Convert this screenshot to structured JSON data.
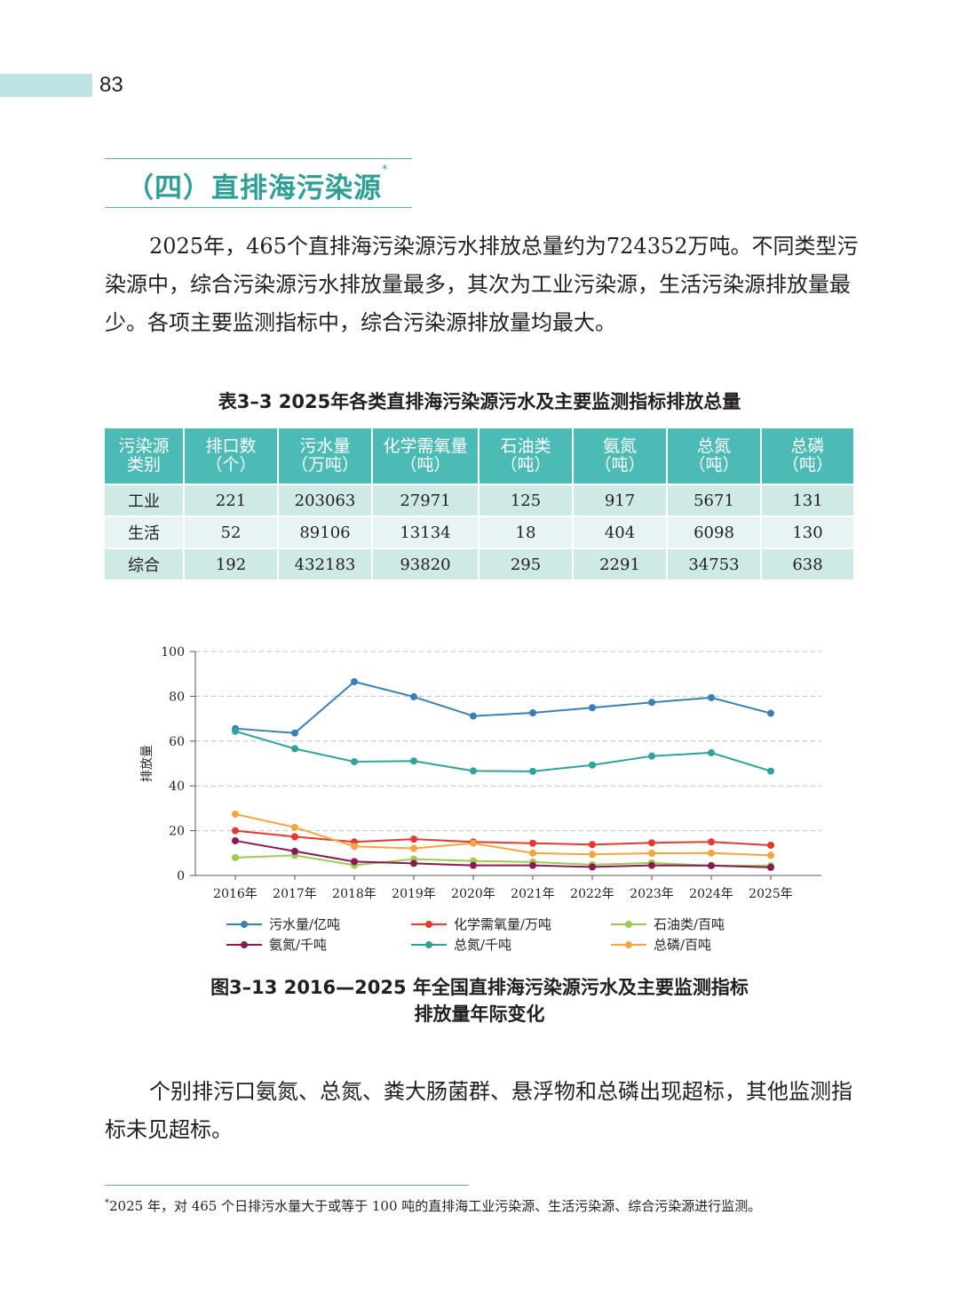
{
  "page_number": "83",
  "section": {
    "title": "（四）直排海污染源",
    "title_mark": "*"
  },
  "paragraph_1": "2025年，465个直排海污染源污水排放总量约为724352万吨。不同类型污染源中，综合污染源污水排放量最多，其次为工业污染源，生活污染源排放量最少。各项主要监测指标中，综合污染源排放量均最大。",
  "table": {
    "caption": "表3–3  2025年各类直排海污染源污水及主要监测指标排放总量",
    "headers": [
      {
        "line1": "污染源",
        "line2": "类别"
      },
      {
        "line1": "排口数",
        "line2": "（个）"
      },
      {
        "line1": "污水量",
        "line2": "（万吨）"
      },
      {
        "line1": "化学需氧量",
        "line2": "（吨）"
      },
      {
        "line1": "石油类",
        "line2": "（吨）"
      },
      {
        "line1": "氨氮",
        "line2": "（吨）"
      },
      {
        "line1": "总氮",
        "line2": "（吨）"
      },
      {
        "line1": "总磷",
        "line2": "（吨）"
      }
    ],
    "rows": [
      [
        "工业",
        "221",
        "203063",
        "27971",
        "125",
        "917",
        "5671",
        "131"
      ],
      [
        "生活",
        "52",
        "89106",
        "13134",
        "18",
        "404",
        "6098",
        "130"
      ],
      [
        "综合",
        "192",
        "432183",
        "93820",
        "295",
        "2291",
        "34753",
        "638"
      ]
    ]
  },
  "chart_data": {
    "type": "line",
    "ylabel": "排放量",
    "xlabel": "",
    "ylim": [
      0,
      100
    ],
    "yticks": [
      0,
      20,
      40,
      60,
      80,
      100
    ],
    "grid": "horizontal dashed",
    "legend_position": "bottom",
    "categories": [
      "2016年",
      "2017年",
      "2018年",
      "2019年",
      "2020年",
      "2021年",
      "2022年",
      "2023年",
      "2024年",
      "2025年"
    ],
    "series": [
      {
        "name": "污水量/亿吨",
        "color": "#3a7fb5",
        "values": [
          65.6,
          63.6,
          86.5,
          79.8,
          71.2,
          72.6,
          74.9,
          77.3,
          79.4,
          72.4
        ]
      },
      {
        "name": "化学需氧量/万吨",
        "color": "#e8382d",
        "values": [
          20.0,
          17.3,
          15.0,
          16.2,
          15.0,
          14.4,
          13.8,
          14.6,
          15.0,
          13.5
        ]
      },
      {
        "name": "石油类/百吨",
        "color": "#9ccb53",
        "values": [
          8.0,
          9.0,
          4.6,
          7.3,
          6.5,
          6.0,
          4.8,
          5.6,
          4.4,
          4.4
        ]
      },
      {
        "name": "氨氮/千吨",
        "color": "#8b1a54",
        "values": [
          15.5,
          10.8,
          6.2,
          5.4,
          4.5,
          4.5,
          3.8,
          4.5,
          4.4,
          3.6
        ]
      },
      {
        "name": "总氮/千吨",
        "color": "#2ea39b",
        "values": [
          64.4,
          56.6,
          50.8,
          51.1,
          46.7,
          46.5,
          49.3,
          53.3,
          54.8,
          46.6
        ]
      },
      {
        "name": "总磷/百吨",
        "color": "#f5a53d",
        "values": [
          27.4,
          21.5,
          13.0,
          12.1,
          14.4,
          10.0,
          9.4,
          9.9,
          10.0,
          9.0
        ]
      }
    ]
  },
  "figure": {
    "caption_line1": "图3–13  2016—2025 年全国直排海污染源污水及主要监测指标",
    "caption_line2": "排放量年际变化"
  },
  "paragraph_2": "个别排污口氨氮、总氮、粪大肠菌群、悬浮物和总磷出现超标，其他监测指标未见超标。",
  "footnote": {
    "mark": "*",
    "text": "2025 年，对 465 个日排污水量大于或等于 100 吨的直排海工业污染源、生活污染源、综合污染源进行监测。"
  },
  "colors": {
    "accent": "#4fb3ad",
    "table_header": "#4dbbb5",
    "page_tab": "#bfe3e2"
  }
}
